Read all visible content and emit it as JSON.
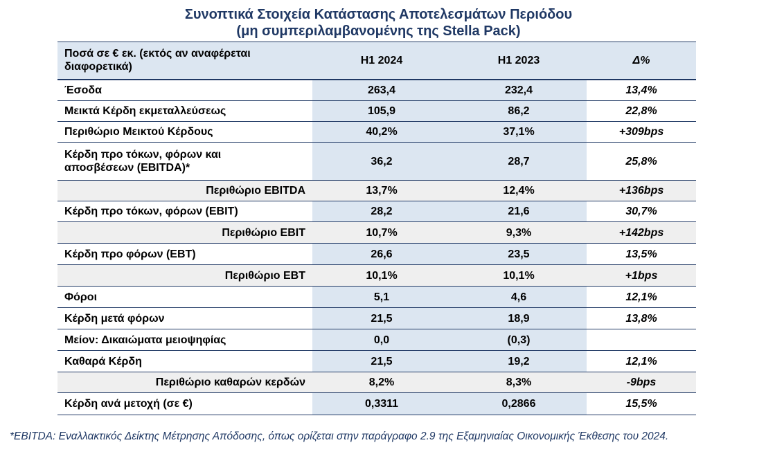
{
  "title": {
    "line1": "Συνοπτικά Στοιχεία Κατάστασης Αποτελεσμάτων Περιόδου",
    "line2": "(μη συμπεριλαμβανομένης της Stella Pack)"
  },
  "table": {
    "header": {
      "col1": "Ποσά σε € εκ. (εκτός αν αναφέρεται διαφορετικά)",
      "col2": "H1 2024",
      "col3": "H1 2023",
      "col4": "Δ%"
    },
    "rows": [
      {
        "label": "Έσοδα",
        "h1_2024": "263,4",
        "h1_2023": "232,4",
        "delta": "13,4%"
      },
      {
        "label": "Μεικτά Κέρδη εκμεταλλεύσεως",
        "h1_2024": "105,9",
        "h1_2023": "86,2",
        "delta": "22,8%"
      },
      {
        "label": "Περιθώριο Μεικτού Κέρδους",
        "h1_2024": "40,2%",
        "h1_2023": "37,1%",
        "delta": "+309bps"
      },
      {
        "label": "Κέρδη προ τόκων, φόρων και αποσβέσεων (EBITDA)*",
        "h1_2024": "36,2",
        "h1_2023": "28,7",
        "delta": "25,8%"
      },
      {
        "label": "Περιθώριο EBITDA",
        "h1_2024": "13,7%",
        "h1_2023": "12,4%",
        "delta": "+136bps"
      },
      {
        "label": "Κέρδη προ τόκων, φόρων (EBIT)",
        "h1_2024": "28,2",
        "h1_2023": "21,6",
        "delta": "30,7%"
      },
      {
        "label": "Περιθώριο EBIT",
        "h1_2024": "10,7%",
        "h1_2023": "9,3%",
        "delta": "+142bps"
      },
      {
        "label": "Κέρδη προ φόρων (EBT)",
        "h1_2024": "26,6",
        "h1_2023": "23,5",
        "delta": "13,5%"
      },
      {
        "label": "Περιθώριο EBT",
        "h1_2024": "10,1%",
        "h1_2023": "10,1%",
        "delta": "+1bps"
      },
      {
        "label": "Φόροι",
        "h1_2024": "5,1",
        "h1_2023": "4,6",
        "delta": "12,1%"
      },
      {
        "label": "Κέρδη μετά φόρων",
        "h1_2024": "21,5",
        "h1_2023": "18,9",
        "delta": "13,8%"
      },
      {
        "label": "Μείον: Δικαιώματα μειοψηφίας",
        "h1_2024": "0,0",
        "h1_2023": "(0,3)",
        "delta": ""
      },
      {
        "label": "Καθαρά Κέρδη",
        "h1_2024": "21,5",
        "h1_2023": "19,2",
        "delta": "12,1%"
      },
      {
        "label": "Περιθώριο καθαρών κερδών",
        "h1_2024": "8,2%",
        "h1_2023": "8,3%",
        "delta": "-9bps"
      },
      {
        "label": "Κέρδη ανά μετοχή (σε €)",
        "h1_2024": "0,3311",
        "h1_2023": "0,2866",
        "delta": "15,5%"
      }
    ]
  },
  "footnote": "*EBITDA: Εναλλακτικός Δείκτης Μέτρησης Απόδοσης, όπως ορίζεται στην παράγραφο 2.9 της Εξαμηνιαίας Οικονομικής Έκθεσης του 2024.",
  "colors": {
    "title": "#1f3864",
    "border": "#1f3864",
    "shade_blue": "#dce6f1",
    "shade_gray": "#efefef"
  }
}
